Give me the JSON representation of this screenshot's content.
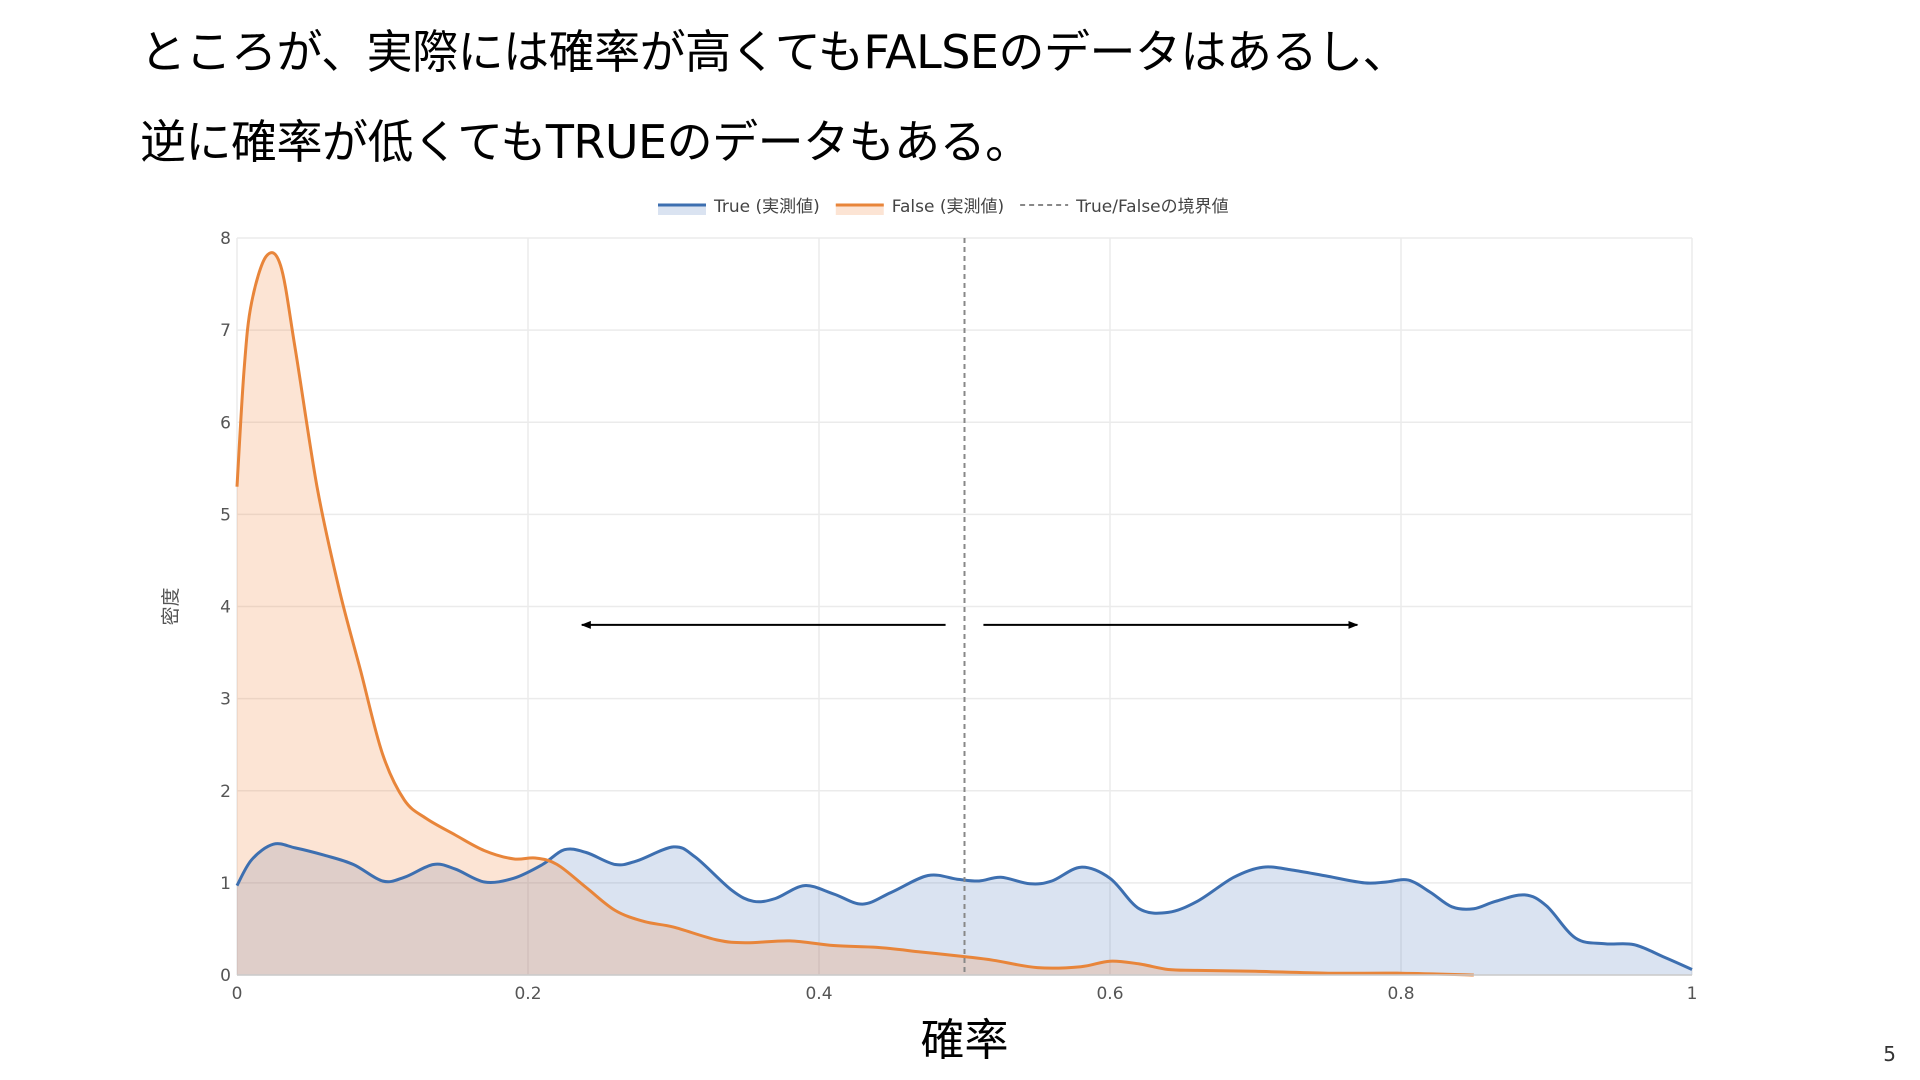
{
  "slide": {
    "heading_line1": "ところが、実際には確率が高くてもFALSEのデータはあるし、",
    "heading_line2": "逆に確率が低くてもTRUEのデータもある。",
    "page_number": "5"
  },
  "chart_data": {
    "type": "area",
    "xlabel": "確率",
    "ylabel": "密度",
    "xlim": [
      0,
      1
    ],
    "ylim": [
      0,
      8
    ],
    "xticks": [
      0,
      0.2,
      0.4,
      0.6,
      0.8,
      1
    ],
    "xtick_labels": [
      "0",
      "0.2",
      "0.4",
      "0.6",
      "0.8",
      "1"
    ],
    "yticks": [
      0,
      1,
      2,
      3,
      4,
      5,
      6,
      7,
      8
    ],
    "ytick_labels": [
      "0",
      "1",
      "2",
      "3",
      "4",
      "5",
      "6",
      "7",
      "8"
    ],
    "grid": true,
    "legend_position": "top-center",
    "series": [
      {
        "name": "True (実測値)",
        "color": "#3d6fb0",
        "fill": "rgba(70,115,185,0.20)",
        "points": [
          [
            0,
            0.97
          ],
          [
            0.01,
            1.25
          ],
          [
            0.025,
            1.42
          ],
          [
            0.04,
            1.38
          ],
          [
            0.06,
            1.3
          ],
          [
            0.08,
            1.2
          ],
          [
            0.1,
            1.02
          ],
          [
            0.115,
            1.06
          ],
          [
            0.135,
            1.2
          ],
          [
            0.15,
            1.15
          ],
          [
            0.17,
            1.01
          ],
          [
            0.19,
            1.05
          ],
          [
            0.21,
            1.2
          ],
          [
            0.225,
            1.36
          ],
          [
            0.24,
            1.33
          ],
          [
            0.26,
            1.2
          ],
          [
            0.275,
            1.24
          ],
          [
            0.3,
            1.39
          ],
          [
            0.315,
            1.28
          ],
          [
            0.34,
            0.92
          ],
          [
            0.355,
            0.8
          ],
          [
            0.37,
            0.83
          ],
          [
            0.39,
            0.97
          ],
          [
            0.41,
            0.88
          ],
          [
            0.43,
            0.77
          ],
          [
            0.45,
            0.9
          ],
          [
            0.475,
            1.08
          ],
          [
            0.495,
            1.04
          ],
          [
            0.51,
            1.02
          ],
          [
            0.525,
            1.06
          ],
          [
            0.545,
            0.99
          ],
          [
            0.56,
            1.02
          ],
          [
            0.58,
            1.17
          ],
          [
            0.6,
            1.05
          ],
          [
            0.62,
            0.72
          ],
          [
            0.64,
            0.68
          ],
          [
            0.66,
            0.8
          ],
          [
            0.685,
            1.06
          ],
          [
            0.705,
            1.17
          ],
          [
            0.725,
            1.14
          ],
          [
            0.75,
            1.07
          ],
          [
            0.775,
            1.0
          ],
          [
            0.79,
            1.01
          ],
          [
            0.805,
            1.03
          ],
          [
            0.82,
            0.9
          ],
          [
            0.835,
            0.74
          ],
          [
            0.85,
            0.72
          ],
          [
            0.865,
            0.8
          ],
          [
            0.885,
            0.87
          ],
          [
            0.9,
            0.75
          ],
          [
            0.92,
            0.4
          ],
          [
            0.94,
            0.34
          ],
          [
            0.96,
            0.33
          ],
          [
            0.98,
            0.2
          ],
          [
            1,
            0.06
          ]
        ]
      },
      {
        "name": "False (実測値)",
        "color": "#e8853a",
        "fill": "rgba(240,130,60,0.22)",
        "points": [
          [
            0,
            5.3
          ],
          [
            0.005,
            6.6
          ],
          [
            0.01,
            7.3
          ],
          [
            0.02,
            7.8
          ],
          [
            0.03,
            7.7
          ],
          [
            0.04,
            6.8
          ],
          [
            0.055,
            5.3
          ],
          [
            0.07,
            4.2
          ],
          [
            0.085,
            3.3
          ],
          [
            0.1,
            2.4
          ],
          [
            0.115,
            1.9
          ],
          [
            0.13,
            1.7
          ],
          [
            0.15,
            1.52
          ],
          [
            0.17,
            1.35
          ],
          [
            0.19,
            1.26
          ],
          [
            0.205,
            1.27
          ],
          [
            0.22,
            1.2
          ],
          [
            0.24,
            0.95
          ],
          [
            0.26,
            0.7
          ],
          [
            0.28,
            0.58
          ],
          [
            0.3,
            0.52
          ],
          [
            0.33,
            0.38
          ],
          [
            0.35,
            0.35
          ],
          [
            0.38,
            0.37
          ],
          [
            0.41,
            0.32
          ],
          [
            0.44,
            0.3
          ],
          [
            0.47,
            0.25
          ],
          [
            0.5,
            0.2
          ],
          [
            0.52,
            0.16
          ],
          [
            0.55,
            0.08
          ],
          [
            0.58,
            0.09
          ],
          [
            0.6,
            0.15
          ],
          [
            0.62,
            0.12
          ],
          [
            0.64,
            0.06
          ],
          [
            0.66,
            0.05
          ],
          [
            0.7,
            0.04
          ],
          [
            0.75,
            0.02
          ],
          [
            0.8,
            0.02
          ],
          [
            0.85,
            0.0
          ]
        ]
      },
      {
        "name": "True/Falseの境界値",
        "color": "#888888",
        "x": 0.5,
        "style": "dashed"
      }
    ],
    "annotations": [
      {
        "type": "arrow",
        "from_x": 0.487,
        "to_x": 0.237,
        "y": 3.8
      },
      {
        "type": "arrow",
        "from_x": 0.513,
        "to_x": 0.77,
        "y": 3.8
      }
    ]
  }
}
